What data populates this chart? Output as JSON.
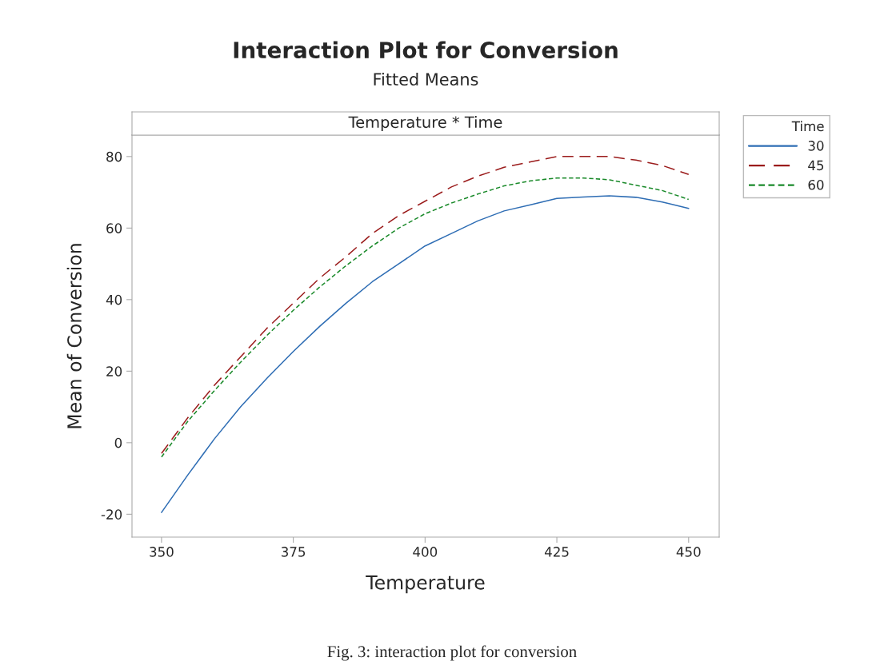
{
  "chart_data": {
    "type": "line",
    "title": "Interaction Plot for Conversion",
    "subtitle": "Fitted Means",
    "xlabel": "Temperature",
    "ylabel": "Mean of Conversion",
    "legend_title": "Time",
    "annotations": [
      "Temperature * Time",
      "Fig. 3: interaction plot for conversion"
    ],
    "x": [
      350,
      355,
      360,
      365,
      370,
      375,
      380,
      385,
      390,
      395,
      400,
      405,
      410,
      415,
      420,
      425,
      430,
      435,
      440,
      445,
      450
    ],
    "series": [
      {
        "name": "30",
        "color": "#2e6db4",
        "line_style": "solid",
        "values": [
          -19.5,
          -9,
          1,
          10,
          18,
          25.5,
          32.5,
          39,
          45,
          50,
          55,
          58.5,
          62,
          64.8,
          66.5,
          68.3,
          68.7,
          69,
          68.6,
          67.3,
          65.5
        ]
      },
      {
        "name": "45",
        "color": "#9b1c1c",
        "line_style": "dashed",
        "values": [
          -3,
          7,
          16,
          24,
          32,
          39,
          46,
          52,
          58.5,
          63.5,
          67.5,
          71.5,
          74.5,
          77,
          78.5,
          80,
          80,
          80,
          79,
          77.5,
          75
        ]
      },
      {
        "name": "60",
        "color": "#1a8a2a",
        "line_style": "dotted",
        "values": [
          -4,
          6,
          14.5,
          22.5,
          30,
          37,
          43.5,
          49.5,
          55,
          60,
          64,
          67,
          69.5,
          71.8,
          73.2,
          74,
          74,
          73.5,
          72,
          70.5,
          68
        ]
      }
    ],
    "xlim": [
      344.4,
      455.8
    ],
    "xticks": [
      350,
      375,
      400,
      425,
      450
    ],
    "ylim": [
      -26.4,
      86
    ],
    "yticks": [
      -20,
      0,
      20,
      40,
      60,
      80
    ],
    "grid": false,
    "legend": "right"
  }
}
